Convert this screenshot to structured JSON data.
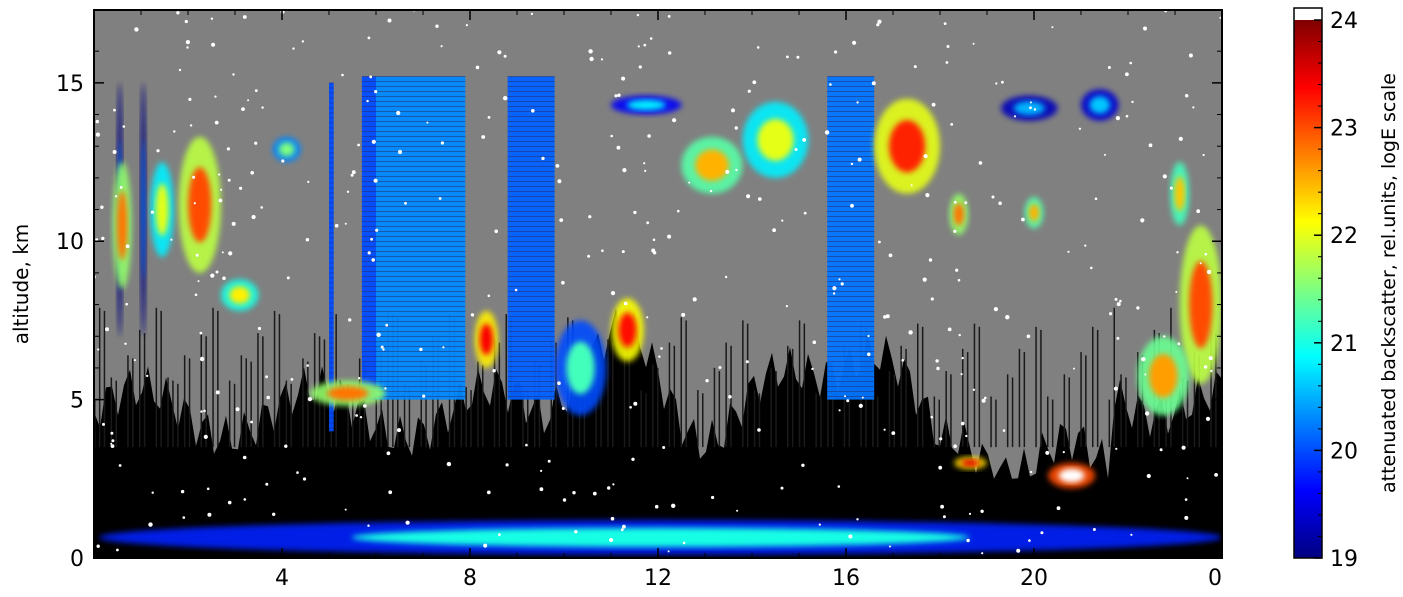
{
  "chart_data": {
    "type": "heatmap",
    "title": "",
    "xlabel": "",
    "ylabel": "altitude, km",
    "x_ticks": [
      "4",
      "8",
      "12",
      "16",
      "20",
      "0"
    ],
    "x_tick_values": [
      4,
      8,
      12,
      16,
      20,
      24
    ],
    "xlim": [
      0,
      24
    ],
    "y_ticks": [
      "0",
      "5",
      "10",
      "15"
    ],
    "y_tick_values": [
      0,
      5,
      10,
      15
    ],
    "ylim": [
      0,
      17.3
    ],
    "grid": false,
    "colorbar": {
      "label": "attenuated backscatter, rel.units, logE scale",
      "ticks": [
        "19",
        "20",
        "21",
        "22",
        "23",
        "24"
      ],
      "tick_values": [
        19,
        20,
        21,
        22,
        23,
        24
      ],
      "range": [
        19,
        24
      ],
      "colormap": "jet",
      "colors": [
        "#00007f",
        "#0000ff",
        "#007fff",
        "#00ffff",
        "#7fff7f",
        "#ffff00",
        "#ff7f00",
        "#ff0000",
        "#7f0000"
      ],
      "over_color": "#ffffff"
    },
    "background_color": "#808080",
    "low_signal_color": "#000000",
    "regions": [
      {
        "x": [
          0.5,
          0.6
        ],
        "y": [
          7.0,
          15.0
        ],
        "value": 20.2
      },
      {
        "x": [
          1.0,
          1.1
        ],
        "y": [
          7.0,
          15.0
        ],
        "value": 20.2
      },
      {
        "x": [
          5.0,
          5.1
        ],
        "y": [
          4.0,
          15.0
        ],
        "value": 20.0
      },
      {
        "x": [
          5.7,
          6.0
        ],
        "y": [
          5.0,
          15.2
        ],
        "value": 20.0
      },
      {
        "x": [
          6.0,
          7.9
        ],
        "y": [
          5.0,
          15.2
        ],
        "value": 20.3
      },
      {
        "x": [
          8.8,
          9.8
        ],
        "y": [
          5.0,
          15.2
        ],
        "value": 20.1
      },
      {
        "x": [
          15.6,
          16.6
        ],
        "y": [
          5.0,
          15.2
        ],
        "value": 20.2
      },
      {
        "x": [
          0.4,
          0.8
        ],
        "y": [
          8.5,
          12.5
        ],
        "value": 22.8
      },
      {
        "x": [
          1.2,
          1.7
        ],
        "y": [
          9.5,
          12.5
        ],
        "value": 22.0
      },
      {
        "x": [
          1.8,
          2.7
        ],
        "y": [
          9.0,
          13.3
        ],
        "value": 23.0
      },
      {
        "x": [
          2.7,
          3.5
        ],
        "y": [
          7.8,
          8.8
        ],
        "value": 22.2
      },
      {
        "x": [
          3.8,
          4.4
        ],
        "y": [
          12.5,
          13.3
        ],
        "value": 21.5
      },
      {
        "x": [
          12.5,
          13.8
        ],
        "y": [
          11.5,
          13.3
        ],
        "value": 22.5
      },
      {
        "x": [
          13.8,
          15.2
        ],
        "y": [
          12.0,
          14.4
        ],
        "value": 22.0
      },
      {
        "x": [
          16.6,
          18.0
        ],
        "y": [
          11.5,
          14.5
        ],
        "value": 23.2
      },
      {
        "x": [
          11.0,
          11.7
        ],
        "y": [
          6.2,
          8.2
        ],
        "value": 23.3
      },
      {
        "x": [
          8.1,
          8.6
        ],
        "y": [
          6.0,
          7.8
        ],
        "value": 23.4
      },
      {
        "x": [
          9.8,
          10.9
        ],
        "y": [
          4.5,
          7.5
        ],
        "value": 21.2
      },
      {
        "x": [
          23.1,
          24.0
        ],
        "y": [
          5.5,
          10.5
        ],
        "value": 23.0
      },
      {
        "x": [
          22.2,
          23.3
        ],
        "y": [
          4.5,
          7.0
        ],
        "value": 22.6
      },
      {
        "x": [
          18.2,
          18.6
        ],
        "y": [
          10.2,
          11.5
        ],
        "value": 22.8
      },
      {
        "x": [
          19.8,
          20.2
        ],
        "y": [
          10.4,
          11.4
        ],
        "value": 22.5
      },
      {
        "x": [
          22.9,
          23.3
        ],
        "y": [
          10.5,
          12.5
        ],
        "value": 22.4
      },
      {
        "x": [
          11.0,
          12.5
        ],
        "y": [
          14.0,
          14.6
        ],
        "value": 20.8
      },
      {
        "x": [
          19.3,
          20.5
        ],
        "y": [
          13.8,
          14.6
        ],
        "value": 20.5
      },
      {
        "x": [
          21.0,
          21.8
        ],
        "y": [
          13.8,
          14.8
        ],
        "value": 20.6
      },
      {
        "x": [
          4.6,
          6.2
        ],
        "y": [
          4.8,
          5.6
        ],
        "value": 22.8
      },
      {
        "x": [
          18.3,
          19.0
        ],
        "y": [
          2.8,
          3.2
        ],
        "value": 23.5
      },
      {
        "x": [
          20.3,
          21.3
        ],
        "y": [
          2.2,
          3.0
        ],
        "value": 24.2
      },
      {
        "x": [
          0.1,
          24.0
        ],
        "y": [
          0.1,
          1.2
        ],
        "value": 21.0
      }
    ]
  }
}
